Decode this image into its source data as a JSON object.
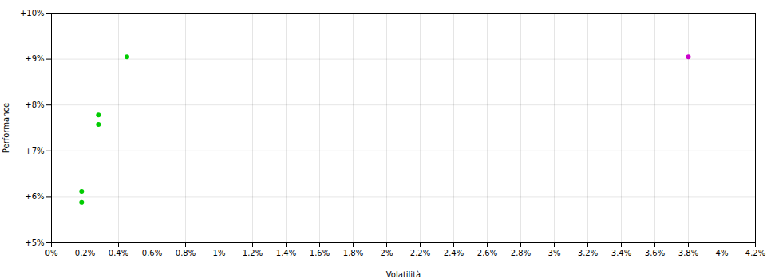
{
  "chart_data": {
    "type": "scatter",
    "xlabel": "Volatilità",
    "ylabel": "Performance",
    "xlim": [
      0.0,
      0.042
    ],
    "ylim": [
      0.05,
      0.1
    ],
    "xticks": [
      {
        "value": 0.0,
        "label": "0%"
      },
      {
        "value": 0.002,
        "label": "0.2%"
      },
      {
        "value": 0.004,
        "label": "0.4%"
      },
      {
        "value": 0.006,
        "label": "0.6%"
      },
      {
        "value": 0.008,
        "label": "0.8%"
      },
      {
        "value": 0.01,
        "label": "1%"
      },
      {
        "value": 0.012,
        "label": "1.2%"
      },
      {
        "value": 0.014,
        "label": "1.4%"
      },
      {
        "value": 0.016,
        "label": "1.6%"
      },
      {
        "value": 0.018,
        "label": "1.8%"
      },
      {
        "value": 0.02,
        "label": "2%"
      },
      {
        "value": 0.022,
        "label": "2.2%"
      },
      {
        "value": 0.024,
        "label": "2.4%"
      },
      {
        "value": 0.026,
        "label": "2.6%"
      },
      {
        "value": 0.028,
        "label": "2.8%"
      },
      {
        "value": 0.03,
        "label": "3%"
      },
      {
        "value": 0.032,
        "label": "3.2%"
      },
      {
        "value": 0.034,
        "label": "3.4%"
      },
      {
        "value": 0.036,
        "label": "3.6%"
      },
      {
        "value": 0.038,
        "label": "3.8%"
      },
      {
        "value": 0.04,
        "label": "4%"
      },
      {
        "value": 0.042,
        "label": "4.2%"
      }
    ],
    "yticks": [
      {
        "value": 0.05,
        "label": "+5%"
      },
      {
        "value": 0.06,
        "label": "+6%"
      },
      {
        "value": 0.07,
        "label": "+7%"
      },
      {
        "value": 0.08,
        "label": "+8%"
      },
      {
        "value": 0.09,
        "label": "+9%"
      },
      {
        "value": 0.1,
        "label": "+10%"
      }
    ],
    "grid": true,
    "series": [
      {
        "color": "#00cc00",
        "x": [
          0.0018,
          0.0018,
          0.0028,
          0.0028,
          0.0045
        ],
        "values": [
          0.0612,
          0.0588,
          0.0778,
          0.0758,
          0.0905
        ]
      },
      {
        "color": "#cc00cc",
        "x": [
          0.038
        ],
        "values": [
          0.0905
        ]
      }
    ]
  }
}
